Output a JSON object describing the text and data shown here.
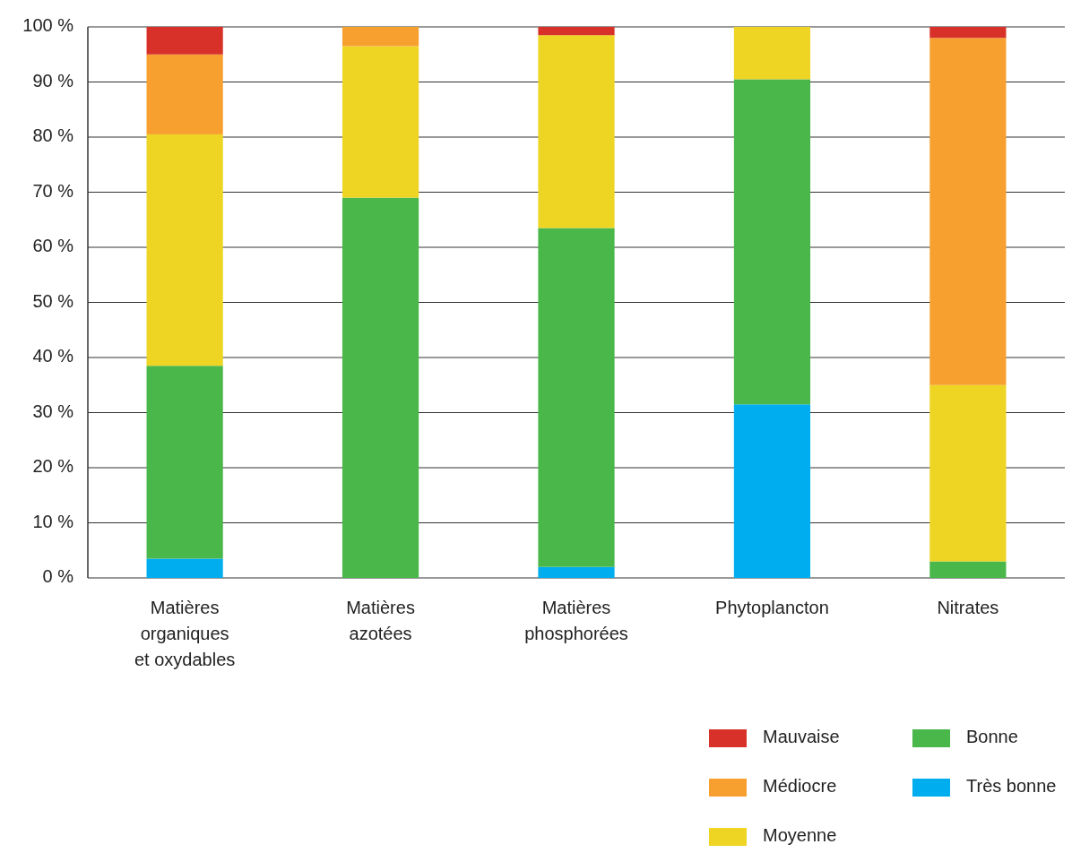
{
  "chart_data": {
    "type": "bar",
    "stacked": true,
    "categories": [
      "Matières organiques et oxydables",
      "Matières azotées",
      "Matières phosphorées",
      "Phytoplancton",
      "Nitrates"
    ],
    "series": [
      {
        "name": "Très bonne",
        "color": "#00aeef",
        "values": [
          3.5,
          0,
          2,
          31.5,
          0
        ]
      },
      {
        "name": "Bonne",
        "color": "#49b74a",
        "values": [
          35,
          69,
          61.5,
          59,
          3
        ]
      },
      {
        "name": "Moyenne",
        "color": "#efd523",
        "values": [
          42,
          27.5,
          35,
          9.5,
          32
        ]
      },
      {
        "name": "Médiocre",
        "color": "#f7a030",
        "values": [
          14.5,
          3.5,
          0,
          0,
          63
        ]
      },
      {
        "name": "Mauvaise",
        "color": "#d7312a",
        "values": [
          5,
          0,
          1.5,
          0,
          2
        ]
      }
    ],
    "ylim": [
      0,
      100
    ],
    "yticks": [
      {
        "value": 0,
        "label": "0 %"
      },
      {
        "value": 10,
        "label": "10 %"
      },
      {
        "value": 20,
        "label": "20 %"
      },
      {
        "value": 30,
        "label": "30 %"
      },
      {
        "value": 40,
        "label": "40 %"
      },
      {
        "value": 50,
        "label": "50 %"
      },
      {
        "value": 60,
        "label": "60 %"
      },
      {
        "value": 70,
        "label": "70 %"
      },
      {
        "value": 80,
        "label": "80 %"
      },
      {
        "value": 90,
        "label": "90 %"
      },
      {
        "value": 100,
        "label": "100 %"
      }
    ],
    "grid": "y",
    "legend": "bottom right"
  }
}
